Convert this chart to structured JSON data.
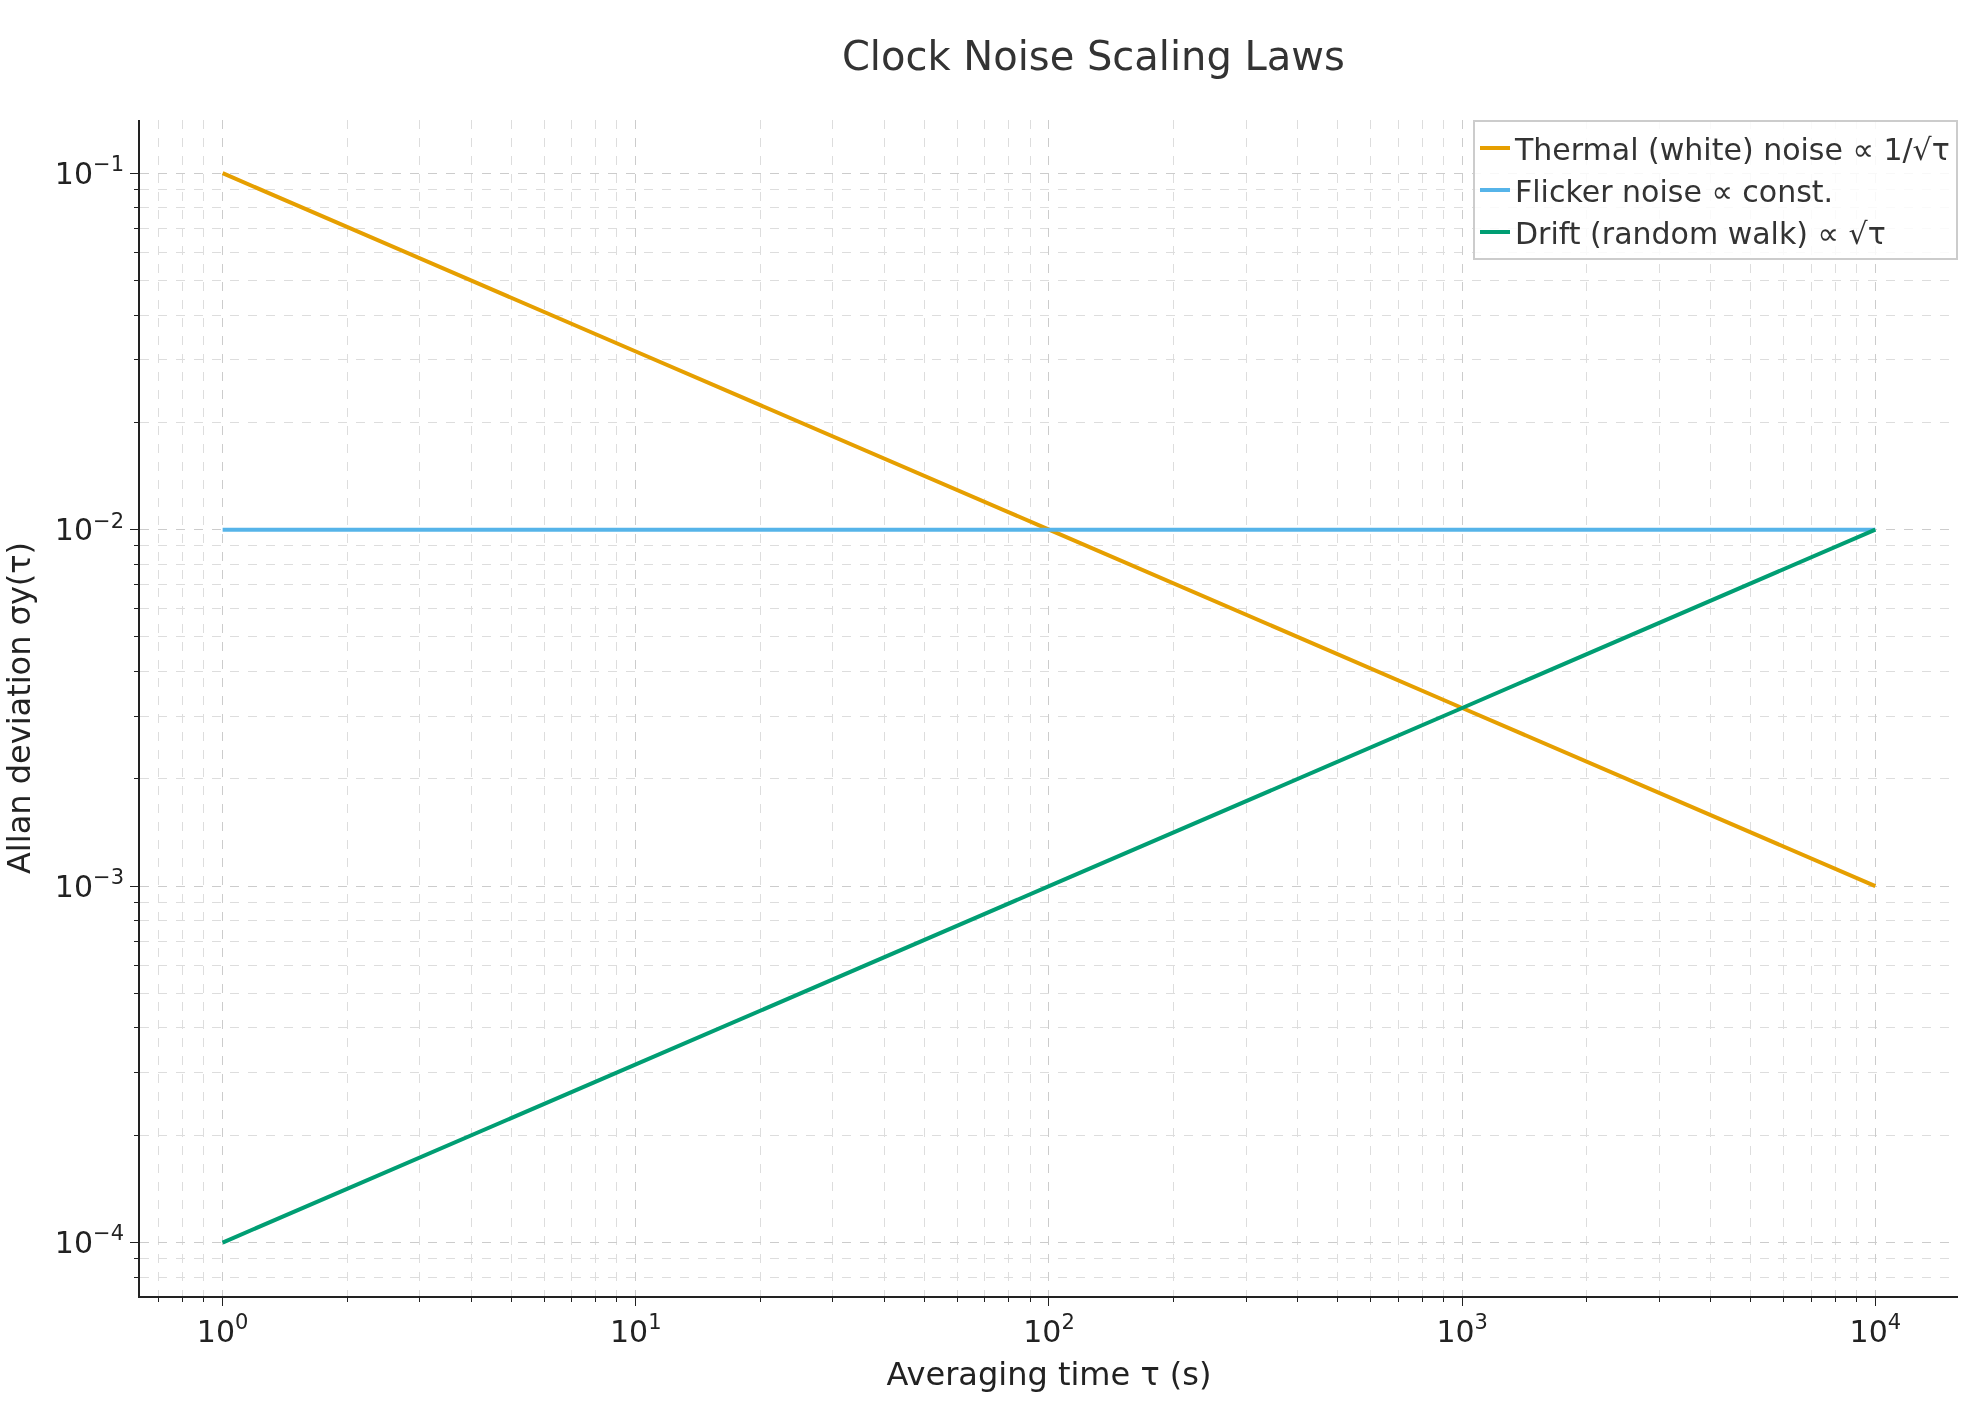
{
  "chart_data": {
    "type": "line",
    "title": "Clock Noise Scaling Laws",
    "xlabel": "Averaging time τ (s)",
    "ylabel": "Allan deviation σy(τ)",
    "x": [
      1,
      10,
      100,
      1000,
      10000
    ],
    "series": [
      {
        "name": "Thermal (white) noise ∝ 1/√τ",
        "color": "#e69f00",
        "values": [
          0.1,
          0.0316,
          0.01,
          0.00316,
          0.001
        ]
      },
      {
        "name": "Flicker noise ∝ const.",
        "color": "#56b4e9",
        "values": [
          0.01,
          0.01,
          0.01,
          0.01,
          0.01
        ]
      },
      {
        "name": "Drift (random walk) ∝ √τ",
        "color": "#009e73",
        "values": [
          0.0001,
          0.000316,
          0.001,
          0.00316,
          0.01
        ]
      }
    ],
    "log": "xy",
    "xlim": [
      0.631,
      15849
    ],
    "ylim": [
      7.08e-05,
      0.141
    ],
    "xticks": [
      {
        "value": 1,
        "label": "10$^{0}$"
      },
      {
        "value": 10,
        "label": "10$^{1}$"
      },
      {
        "value": 100,
        "label": "10$^{2}$"
      },
      {
        "value": 1000,
        "label": "10$^{3}$"
      },
      {
        "value": 10000,
        "label": "10$^{4}$"
      }
    ],
    "yticks": [
      {
        "value": 0.0001,
        "label": "10$^{−4}$"
      },
      {
        "value": 0.001,
        "label": "10$^{−3}$"
      },
      {
        "value": 0.01,
        "label": "10$^{−2}$"
      },
      {
        "value": 0.1,
        "label": "10$^{−1}$"
      }
    ],
    "grid": true,
    "legend": "top right",
    "marker": "none",
    "line_style": "solid"
  }
}
